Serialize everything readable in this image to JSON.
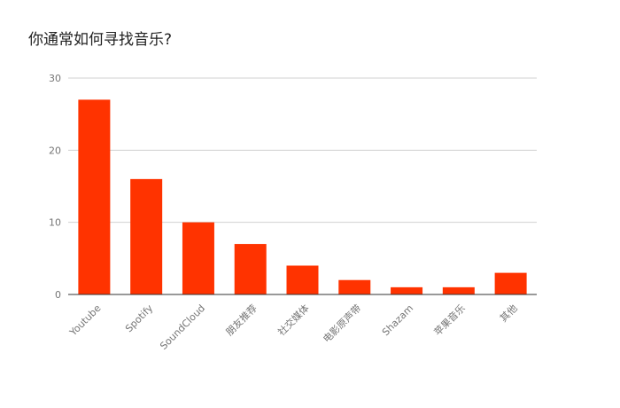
{
  "chart_data": {
    "type": "bar",
    "title": "你通常如何寻找音乐?",
    "xlabel": "",
    "ylabel": "",
    "categories": [
      "Youtube",
      "Spotify",
      "SoundCloud",
      "朋友推荐",
      "社交媒体",
      "电影原声带",
      "Shazam",
      "苹果音乐",
      "其他"
    ],
    "values": [
      27,
      16,
      10,
      7,
      4,
      2,
      1,
      1,
      3
    ],
    "ylim": [
      0,
      30
    ],
    "yticks": [
      0,
      10,
      20,
      30
    ],
    "grid": true,
    "legend": "none",
    "bar_color": "#ff3300"
  }
}
